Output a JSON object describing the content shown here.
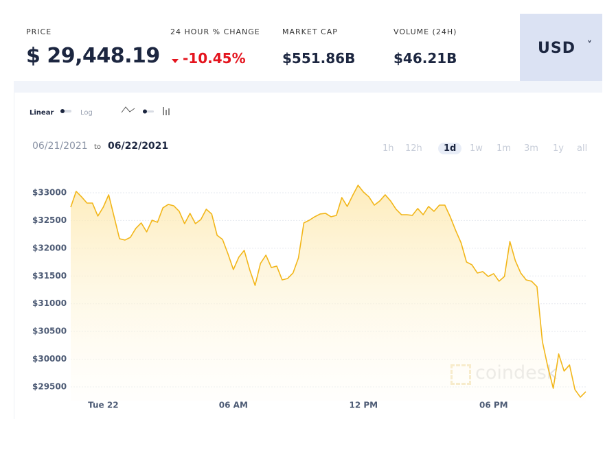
{
  "header": {
    "stats": [
      {
        "label": "PRICE",
        "value": "$ 29,448.19"
      },
      {
        "label": "24 HOUR % CHANGE",
        "value": "-10.45%"
      },
      {
        "label": "MARKET CAP",
        "value": "$551.86B"
      },
      {
        "label": "VOLUME (24H)",
        "value": "$46.21B"
      }
    ],
    "currency": "USD"
  },
  "controls": {
    "scale_options": [
      "Linear",
      "Log"
    ],
    "date_from": "06/21/2021",
    "date_sep": "to",
    "date_to": "06/22/2021",
    "ranges": [
      "1h",
      "12h",
      "1d",
      "1w",
      "1m",
      "3m",
      "1y",
      "all"
    ],
    "watermark": "coindesk"
  },
  "chart_data": {
    "type": "area",
    "color": "#f2b619",
    "log": false,
    "grid": true,
    "x": [
      -1.5,
      -1.25,
      -1,
      -0.75,
      -0.5,
      -0.25,
      0,
      0.25,
      0.5,
      0.75,
      1,
      1.25,
      1.5,
      1.75,
      2,
      2.25,
      2.5,
      2.75,
      3,
      3.25,
      3.5,
      3.75,
      4,
      4.25,
      4.5,
      4.75,
      5,
      5.25,
      5.5,
      5.75,
      6,
      6.25,
      6.5,
      6.75,
      7,
      7.25,
      7.5,
      7.75,
      8,
      8.25,
      8.5,
      8.75,
      9,
      9.25,
      9.5,
      9.75,
      10,
      10.25,
      10.5,
      10.75,
      11,
      11.25,
      11.5,
      11.75,
      12,
      12.25,
      12.5,
      12.75,
      13,
      13.25,
      13.5,
      13.75,
      14,
      14.25,
      14.5,
      14.75,
      15,
      15.25,
      15.5,
      15.75,
      16,
      16.25,
      16.5,
      16.75,
      17,
      17.25,
      17.5,
      17.75,
      18,
      18.25,
      18.5,
      18.75,
      19,
      19.25,
      19.5,
      19.75,
      20,
      20.25,
      20.5,
      20.75,
      21,
      21.25,
      21.5,
      21.75,
      22,
      22.25
    ],
    "values": [
      32740,
      33025,
      32926,
      32814,
      32814,
      32580,
      32740,
      32963,
      32567,
      32171,
      32147,
      32196,
      32357,
      32456,
      32295,
      32505,
      32468,
      32728,
      32790,
      32765,
      32666,
      32443,
      32629,
      32443,
      32518,
      32703,
      32617,
      32233,
      32159,
      31899,
      31615,
      31838,
      31961,
      31615,
      31330,
      31726,
      31875,
      31652,
      31677,
      31429,
      31454,
      31553,
      31825,
      32456,
      32505,
      32567,
      32617,
      32629,
      32567,
      32592,
      32913,
      32753,
      32951,
      33136,
      33012,
      32926,
      32777,
      32852,
      32963,
      32852,
      32703,
      32604,
      32604,
      32592,
      32716,
      32604,
      32753,
      32666,
      32777,
      32777,
      32567,
      32320,
      32097,
      31751,
      31701,
      31553,
      31578,
      31491,
      31541,
      31405,
      31491,
      32122,
      31776,
      31553,
      31429,
      31405,
      31306,
      30316,
      29859,
      29475,
      30094,
      29785,
      29896,
      29451,
      29315,
      29414
    ],
    "xlim": [
      -1.5,
      22.25
    ],
    "xticks": [
      {
        "value": 0,
        "label": "Tue 22"
      },
      {
        "value": 6,
        "label": "06 AM"
      },
      {
        "value": 12,
        "label": "12 PM"
      },
      {
        "value": 18,
        "label": "06 PM"
      }
    ],
    "ylim": [
      29250,
      33200
    ],
    "yticks": [
      {
        "value": 29500,
        "label": "$29500"
      },
      {
        "value": 30000,
        "label": "$30000"
      },
      {
        "value": 30500,
        "label": "$30500"
      },
      {
        "value": 31000,
        "label": "$31000"
      },
      {
        "value": 31500,
        "label": "$31500"
      },
      {
        "value": 32000,
        "label": "$32000"
      },
      {
        "value": 32500,
        "label": "$32500"
      },
      {
        "value": 33000,
        "label": "$33000"
      }
    ]
  }
}
